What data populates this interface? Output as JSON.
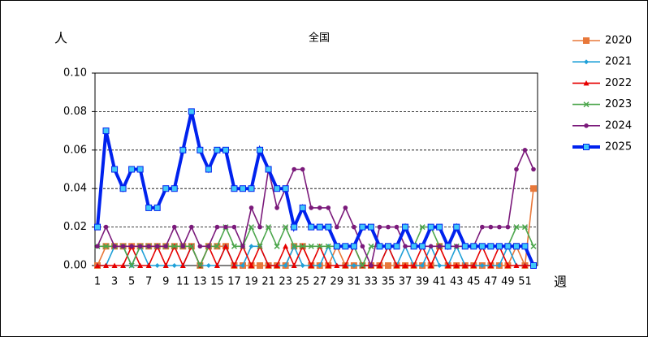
{
  "chart_data": {
    "type": "line",
    "title": "全国",
    "y_label": "人",
    "x_label": "週",
    "categories": [
      1,
      null,
      3,
      null,
      5,
      null,
      7,
      null,
      9,
      null,
      11,
      null,
      13,
      null,
      15,
      null,
      17,
      null,
      19,
      null,
      21,
      null,
      23,
      null,
      25,
      null,
      27,
      null,
      29,
      null,
      31,
      null,
      33,
      null,
      35,
      null,
      37,
      null,
      39,
      null,
      41,
      null,
      43,
      null,
      45,
      null,
      47,
      null,
      49,
      null,
      51,
      null
    ],
    "ylim": [
      0,
      0.1
    ],
    "yticks": [
      {
        "value": 0,
        "label": "0.00"
      },
      {
        "value": 0.02,
        "label": "0.02"
      },
      {
        "value": 0.04,
        "label": "0.04"
      },
      {
        "value": 0.06,
        "label": "0.06"
      },
      {
        "value": 0.08,
        "label": "0.08"
      },
      {
        "value": 0.1,
        "label": "0.10"
      }
    ],
    "grid": true,
    "legend": "right",
    "series": [
      {
        "name": "2020",
        "color": "#e8783a",
        "marker": "square",
        "values": [
          0,
          0.01,
          0.01,
          0.01,
          0.01,
          0.01,
          0.01,
          0.01,
          0.01,
          0.01,
          0.01,
          0.01,
          0,
          0.01,
          0.01,
          0.01,
          0,
          0,
          0,
          0,
          0,
          0,
          0,
          0.01,
          0.01,
          0,
          0,
          0,
          0.01,
          0,
          0,
          0,
          0,
          0,
          0,
          0,
          0,
          0,
          0,
          0,
          0.01,
          0,
          0,
          0,
          0,
          0,
          0,
          0,
          0,
          0.01,
          0,
          0.04
        ]
      },
      {
        "name": "2021",
        "color": "#1fa0d8",
        "marker": "diamond",
        "values": [
          0,
          0,
          0.01,
          0.01,
          0,
          0.01,
          0,
          0,
          0,
          0,
          0,
          0.01,
          0,
          0,
          0,
          0.01,
          0,
          0,
          0.01,
          0.01,
          0,
          0,
          0,
          0.01,
          0,
          0,
          0,
          0.01,
          0,
          0,
          0,
          0,
          0,
          0,
          0.01,
          0,
          0.01,
          0,
          0,
          0.01,
          0,
          0,
          0.01,
          0,
          0,
          0,
          0,
          0,
          0.01,
          0,
          0,
          0
        ]
      },
      {
        "name": "2022",
        "color": "#e60000",
        "marker": "triangle",
        "values": [
          0,
          0,
          0,
          0,
          0.01,
          0,
          0,
          0.01,
          0,
          0.01,
          0,
          0.01,
          0,
          0.01,
          0,
          0.01,
          0,
          0.01,
          0,
          0.01,
          0,
          0,
          0.01,
          0,
          0.01,
          0,
          0.01,
          0,
          0,
          0,
          0.01,
          0,
          0,
          0,
          0.01,
          0,
          0,
          0,
          0.01,
          0,
          0.01,
          0,
          0,
          0,
          0,
          0.01,
          0,
          0.01,
          0,
          0,
          0,
          0
        ]
      },
      {
        "name": "2023",
        "color": "#4ca64c",
        "marker": "cross",
        "values": [
          0.01,
          0.01,
          0.01,
          0.01,
          0,
          0.01,
          0.01,
          0.01,
          0.01,
          0.01,
          0.01,
          0.01,
          0,
          0.01,
          0.01,
          0.02,
          0.01,
          0.01,
          0.02,
          0.01,
          0.02,
          0.01,
          0.02,
          0.01,
          0.01,
          0.01,
          0.01,
          0.01,
          0.01,
          0.01,
          0.01,
          0,
          0.01,
          0.01,
          0.01,
          0.01,
          0.02,
          0.01,
          0.02,
          0.02,
          0.01,
          0.01,
          0.01,
          0.01,
          0.01,
          0.01,
          0.01,
          0.01,
          0.01,
          0.02,
          0.02,
          0.01
        ]
      },
      {
        "name": "2024",
        "color": "#7b1a7b",
        "marker": "circle",
        "values": [
          0.01,
          0.02,
          0.01,
          0.01,
          0.01,
          0.01,
          0.01,
          0.01,
          0.01,
          0.02,
          0.01,
          0.02,
          0.01,
          0.01,
          0.02,
          0.02,
          0.02,
          0.01,
          0.03,
          0.02,
          0.05,
          0.03,
          0.04,
          0.05,
          0.05,
          0.03,
          0.03,
          0.03,
          0.02,
          0.03,
          0.02,
          0.01,
          0,
          0.02,
          0.02,
          0.02,
          0.01,
          0.01,
          0.01,
          0.01,
          0.01,
          0.01,
          0.01,
          0.01,
          0.01,
          0.02,
          0.02,
          0.02,
          0.02,
          0.05,
          0.06,
          0.05
        ]
      },
      {
        "name": "2025",
        "color": "#0022ee",
        "marker_fill": "#40c8f8",
        "marker": "square",
        "values": [
          0.02,
          0.07,
          0.05,
          0.04,
          0.05,
          0.05,
          0.03,
          0.03,
          0.04,
          0.04,
          0.06,
          0.08,
          0.06,
          0.05,
          0.06,
          0.06,
          0.04,
          0.04,
          0.04,
          0.06,
          0.05,
          0.04,
          0.04,
          0.02,
          0.03,
          0.02,
          0.02,
          0.02,
          0.01,
          0.01,
          0.01,
          0.02,
          0.02,
          0.01,
          0.01,
          0.01,
          0.02,
          0.01,
          0.01,
          0.02,
          0.02,
          0.01,
          0.02,
          0.01,
          0.01,
          0.01,
          0.01,
          0.01,
          0.01,
          0.01,
          0.01,
          0
        ]
      }
    ]
  }
}
